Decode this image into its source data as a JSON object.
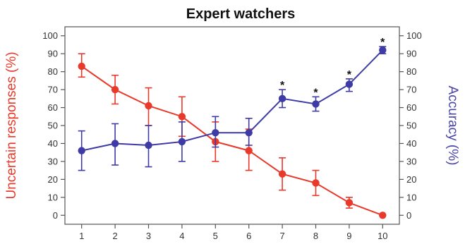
{
  "chart_data": {
    "type": "line",
    "title": "Expert watchers",
    "xlabel": "",
    "ylabel_left": "Uncertain responses (%)",
    "ylabel_right": "Accuracy (%)",
    "x": [
      1,
      2,
      3,
      4,
      5,
      6,
      7,
      8,
      9,
      10
    ],
    "xlim": [
      0.5,
      10.5
    ],
    "ylim": [
      -5,
      105
    ],
    "yticks": [
      0,
      10,
      20,
      30,
      40,
      50,
      60,
      70,
      80,
      90,
      100
    ],
    "grid": false,
    "series": [
      {
        "axis": "left",
        "color": "#e8392a",
        "values": [
          83,
          70,
          61,
          55,
          41,
          36,
          23,
          18,
          7,
          0
        ],
        "err_low": [
          77,
          62,
          50,
          44,
          30,
          25,
          14,
          11,
          4,
          0
        ],
        "err_high": [
          90,
          78,
          71,
          66,
          52,
          48,
          32,
          25,
          10,
          0
        ]
      },
      {
        "axis": "right",
        "color": "#3f3ba6",
        "values": [
          36,
          40,
          39,
          41,
          46,
          46,
          65,
          62,
          73,
          92
        ],
        "err_low": [
          25,
          28,
          27,
          30,
          38,
          39,
          60,
          58,
          69,
          90
        ],
        "err_high": [
          47,
          51,
          50,
          52,
          55,
          54,
          70,
          66,
          76,
          94
        ]
      }
    ],
    "annotations": [
      {
        "x": 7,
        "text": "*"
      },
      {
        "x": 8,
        "text": "*"
      },
      {
        "x": 9,
        "text": "*"
      },
      {
        "x": 10,
        "text": "*"
      }
    ]
  }
}
